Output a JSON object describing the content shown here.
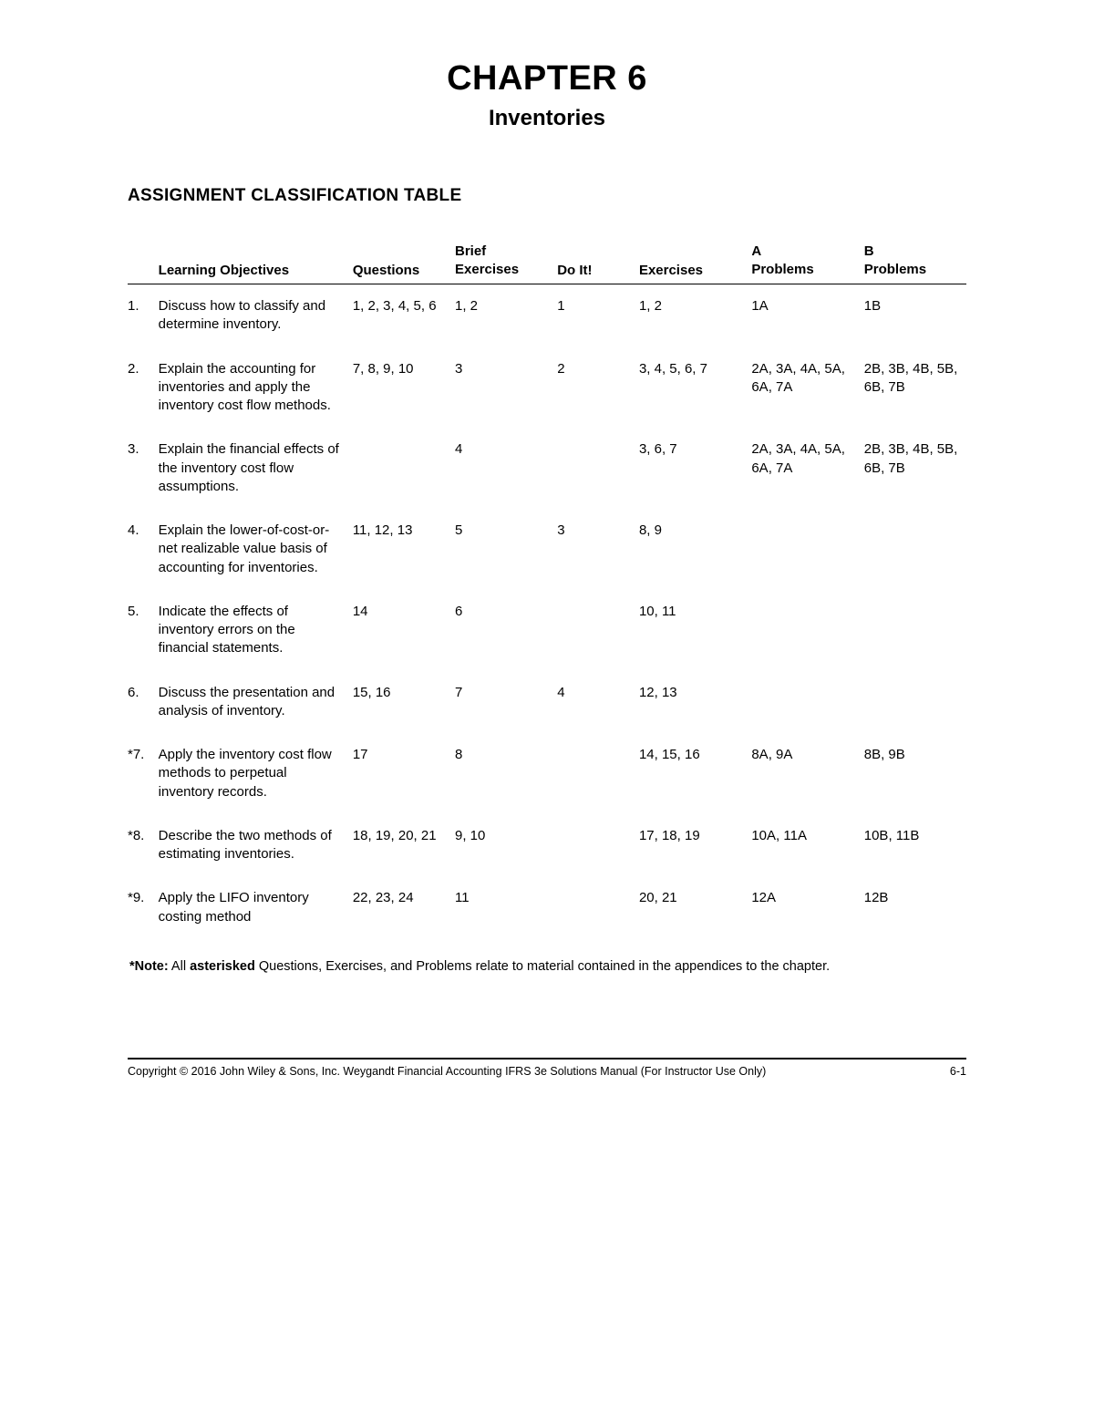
{
  "chapter": {
    "title": "CHAPTER 6",
    "subtitle": "Inventories"
  },
  "section_title": "ASSIGNMENT CLASSIFICATION TABLE",
  "table": {
    "headers": {
      "objectives": "Learning Objectives",
      "questions": "Questions",
      "brief_top": "Brief",
      "brief_bottom": "Exercises",
      "doit": "Do It!",
      "exercises": "Exercises",
      "aprob_top": "A",
      "aprob_bottom": "Problems",
      "bprob_top": "B",
      "bprob_bottom": "Problems"
    },
    "rows": [
      {
        "num": "1.",
        "objective": "Discuss how to classify and determine inventory.",
        "questions": "1, 2, 3, 4, 5, 6",
        "brief": "1, 2",
        "doit": "1",
        "exercises": "1, 2",
        "aprob": "1A",
        "bprob": "1B"
      },
      {
        "num": "2.",
        "objective": "Explain the accounting for inventories and apply the inventory cost flow methods.",
        "questions": "7, 8, 9, 10",
        "brief": "3",
        "doit": "2",
        "exercises": "3, 4, 5, 6, 7",
        "aprob": "2A, 3A, 4A, 5A, 6A, 7A",
        "bprob": "2B, 3B, 4B, 5B, 6B, 7B"
      },
      {
        "num": "3.",
        "objective": "Explain the financial effects of the inventory cost flow assumptions.",
        "questions": "",
        "brief": "4",
        "doit": "",
        "exercises": "3, 6, 7",
        "aprob": "2A, 3A, 4A, 5A, 6A, 7A",
        "bprob": "2B, 3B, 4B, 5B, 6B, 7B"
      },
      {
        "num": "4.",
        "objective": "Explain the lower-of-cost-or-net realizable value basis of accounting for inventories.",
        "questions": "11, 12, 13",
        "brief": "5",
        "doit": "3",
        "exercises": "8, 9",
        "aprob": "",
        "bprob": ""
      },
      {
        "num": "5.",
        "objective": "Indicate the effects of inventory errors on the financial statements.",
        "questions": "14",
        "brief": "6",
        "doit": "",
        "exercises": "10, 11",
        "aprob": "",
        "bprob": ""
      },
      {
        "num": "6.",
        "objective": "Discuss the presentation and analysis of inventory.",
        "questions": "15, 16",
        "brief": "7",
        "doit": "4",
        "exercises": "12, 13",
        "aprob": "",
        "bprob": ""
      },
      {
        "num": "*7.",
        "objective": "Apply the inventory cost flow methods to perpetual inventory records.",
        "questions": "17",
        "brief": "8",
        "doit": "",
        "exercises": "14, 15, 16",
        "aprob": "8A, 9A",
        "bprob": "8B, 9B"
      },
      {
        "num": "*8.",
        "objective": "Describe the two methods of estimating inventories.",
        "questions": "18, 19, 20, 21",
        "brief": "9, 10",
        "doit": "",
        "exercises": "17, 18, 19",
        "aprob": "10A, 11A",
        "bprob": "10B, 11B"
      },
      {
        "num": "*9.",
        "objective": "Apply the LIFO inventory costing method",
        "questions": "22, 23, 24",
        "brief": "11",
        "doit": "",
        "exercises": "20, 21",
        "aprob": "12A",
        "bprob": "12B"
      }
    ]
  },
  "note": {
    "prefix": "*Note:",
    "body": " All ",
    "bold": "asterisked",
    "rest": " Questions, Exercises, and Problems relate to material contained in the appendices to the chapter."
  },
  "footer": {
    "left": "Copyright © 2016 John Wiley & Sons, Inc.   Weygandt Financial Accounting IFRS 3e Solutions Manual (For Instructor Use Only)",
    "right": "6-1"
  }
}
